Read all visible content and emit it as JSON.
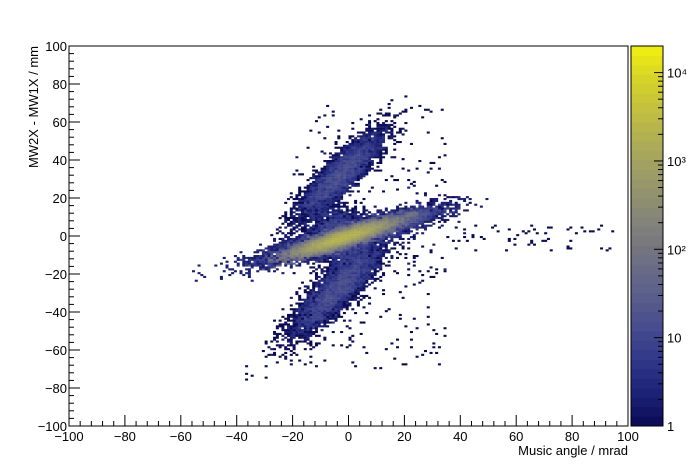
{
  "chart_data": {
    "type": "heatmap",
    "title": "",
    "xlabel": "Music angle / mrad",
    "ylabel": "MW2X - MW1X / mm",
    "xlim": [
      -100,
      100
    ],
    "ylim": [
      -100,
      100
    ],
    "x_ticks": [
      "−100",
      "−80",
      "−60",
      "−40",
      "−20",
      "0",
      "20",
      "40",
      "60",
      "80",
      "100"
    ],
    "y_ticks": [
      "−100",
      "−80",
      "−60",
      "−40",
      "−20",
      "0",
      "20",
      "40",
      "60",
      "80",
      "100"
    ],
    "x_tick_values": [
      -100,
      -80,
      -60,
      -40,
      -20,
      0,
      20,
      40,
      60,
      80,
      100
    ],
    "y_tick_values": [
      -100,
      -80,
      -60,
      -40,
      -20,
      0,
      20,
      40,
      60,
      80,
      100
    ],
    "colorbar": {
      "scale": "log",
      "range": [
        1,
        20000
      ],
      "tick_values": [
        1,
        10,
        100,
        1000,
        10000
      ],
      "tick_labels": [
        "1",
        "10",
        "10²",
        "10³",
        "10⁴"
      ],
      "palette": [
        "#0b0b55",
        "#1d2377",
        "#333a8a",
        "#4a4f8e",
        "#5f628a",
        "#727382",
        "#858478",
        "#97976b",
        "#aaa95a",
        "#bfbd44",
        "#d4d228",
        "#f2f10f"
      ]
    },
    "clusters": [
      {
        "name": "central band",
        "x_range": [
          -32,
          32
        ],
        "y_range": [
          -14,
          14
        ],
        "peak_x": -2,
        "peak_y": -1,
        "peak_counts": 20000
      },
      {
        "name": "upper lobe",
        "x_range": [
          -17,
          10
        ],
        "y_range": [
          10,
          58
        ],
        "peak_x": -3,
        "peak_y": 32,
        "peak_counts": 200
      },
      {
        "name": "lower lobe",
        "x_range": [
          -20,
          12
        ],
        "y_range": [
          -52,
          -5
        ],
        "peak_x": -4,
        "peak_y": -28,
        "peak_counts": 300
      }
    ],
    "grid": false,
    "legend": "colorbar-right"
  }
}
